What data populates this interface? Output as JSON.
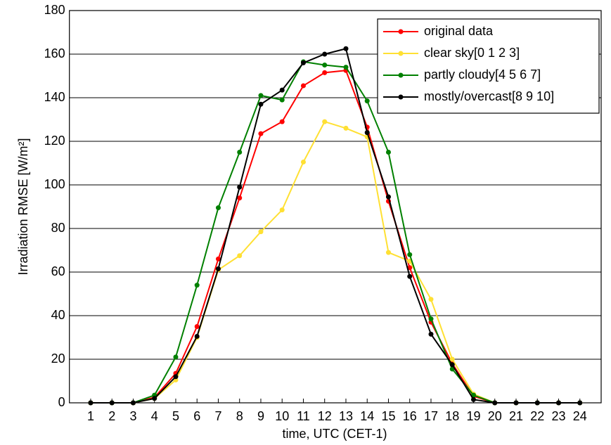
{
  "chart_data": {
    "type": "line",
    "x_label": "time, UTC (CET-1)",
    "y_label": "Irradiation RMSE [W/m²]",
    "x": [
      1,
      2,
      3,
      4,
      5,
      6,
      7,
      8,
      9,
      10,
      11,
      12,
      13,
      14,
      15,
      16,
      17,
      18,
      19,
      20,
      21,
      22,
      23,
      24
    ],
    "series": [
      {
        "name": "original data",
        "color": "#ff0000",
        "values": [
          0,
          0,
          0,
          2.5,
          13.5,
          35,
          66,
          94,
          123.5,
          129,
          145.5,
          151.5,
          152.5,
          126.5,
          92.5,
          62,
          37,
          18,
          3,
          0,
          0,
          0,
          0,
          0
        ]
      },
      {
        "name": "clear sky[0 1 2 3]",
        "color": "#ffe033",
        "values": [
          0,
          0,
          0,
          2,
          10.5,
          30,
          61,
          67.5,
          78.5,
          88.5,
          110.5,
          129,
          126,
          122,
          69,
          65,
          47.5,
          20,
          4,
          0,
          0,
          0,
          0,
          0
        ]
      },
      {
        "name": "partly cloudy[4 5 6 7]",
        "color": "#008000",
        "values": [
          0,
          0,
          0,
          3.5,
          21,
          54,
          89.5,
          115,
          141,
          139,
          156.5,
          155,
          154,
          138.5,
          115,
          68,
          38.5,
          15.5,
          3.5,
          0,
          0,
          0,
          0,
          0
        ]
      },
      {
        "name": "mostly/overcast[8 9 10]",
        "color": "#000000",
        "values": [
          0,
          0,
          0,
          2,
          12,
          30.5,
          61.5,
          99,
          137,
          143.5,
          156,
          160,
          162.5,
          124,
          94.5,
          58,
          31.5,
          17.5,
          1.5,
          0,
          0,
          0,
          0,
          0
        ]
      }
    ],
    "xlim": [
      0,
      25
    ],
    "xticks": [
      1,
      2,
      3,
      4,
      5,
      6,
      7,
      8,
      9,
      10,
      11,
      12,
      13,
      14,
      15,
      16,
      17,
      18,
      19,
      20,
      21,
      22,
      23,
      24
    ],
    "ylim": [
      0,
      180
    ],
    "yticks": [
      0,
      20,
      40,
      60,
      80,
      100,
      120,
      140,
      160,
      180
    ],
    "grid": true,
    "legend": "upper right"
  }
}
